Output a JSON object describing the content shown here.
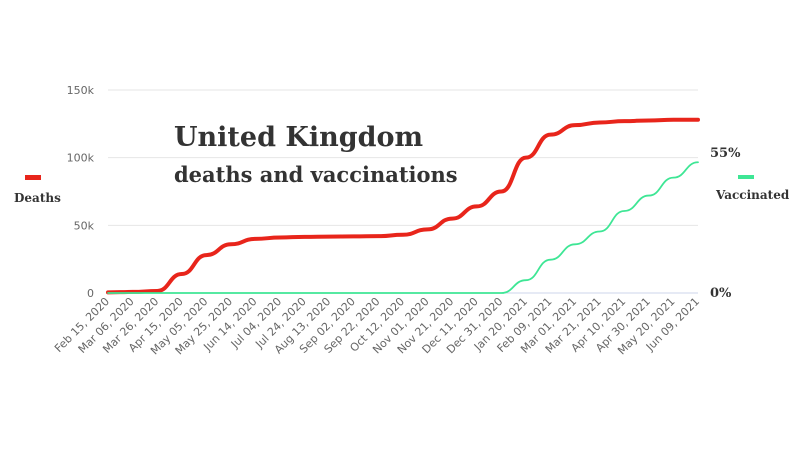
{
  "chart_data": {
    "type": "line",
    "title": "United Kingdom",
    "subtitle": "deaths and vaccinations",
    "categories": [
      "Feb 15, 2020",
      "Mar 06, 2020",
      "Mar 26, 2020",
      "Apr 15, 2020",
      "May 05, 2020",
      "May 25, 2020",
      "Jun 14, 2020",
      "Jul 04, 2020",
      "Jul 24, 2020",
      "Aug 13, 2020",
      "Sep 02, 2020",
      "Sep 22, 2020",
      "Oct 12, 2020",
      "Nov 01, 2020",
      "Nov 21, 2020",
      "Dec 11, 2020",
      "Dec 31, 2020",
      "Jan 20, 2021",
      "Feb 09, 2021",
      "Mar 01, 2021",
      "Mar 21, 2021",
      "Apr 10, 2021",
      "Apr 30, 2021",
      "May 20, 2021",
      "Jun 09, 2021"
    ],
    "series": [
      {
        "name": "Deaths",
        "axis": "left",
        "color": "#e8251b",
        "values": [
          0.5,
          0.8,
          1.5,
          14,
          28,
          36,
          40,
          41,
          41.5,
          41.7,
          41.8,
          42,
          43,
          47,
          55,
          64,
          75,
          100,
          117,
          124,
          126,
          127,
          127.5,
          128,
          128
        ]
      },
      {
        "name": "Vaccinated",
        "axis": "right",
        "color": "#3ee695",
        "values": [
          0,
          0,
          0,
          0,
          0,
          0,
          0,
          0,
          0,
          0,
          0,
          0,
          0,
          0,
          0,
          0,
          0,
          5,
          13,
          19,
          24,
          32,
          38,
          45,
          51
        ]
      }
    ],
    "left_axis": {
      "ticks": [
        "0",
        "50k",
        "100k",
        "150k"
      ],
      "tick_values": [
        0,
        50,
        100,
        150
      ],
      "range": [
        0,
        150
      ],
      "unit": "thousands"
    },
    "right_axis": {
      "ticks": [
        "0%",
        "55%"
      ],
      "tick_values": [
        0,
        55
      ],
      "range": [
        0,
        55
      ],
      "unit": "percent"
    },
    "legend": [
      {
        "label": "Deaths",
        "placement": "left",
        "color": "#e8251b"
      },
      {
        "label": "Vaccinated",
        "placement": "right",
        "color": "#3ee695"
      }
    ],
    "grid": true
  }
}
